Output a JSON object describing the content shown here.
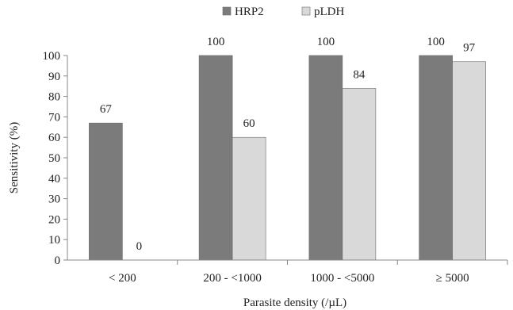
{
  "chart_data": {
    "type": "bar",
    "title": "",
    "xlabel": "Parasite density (/µL)",
    "ylabel": "Sensitivity (%)",
    "categories": [
      "< 200",
      "200 - <1000",
      "1000 - <5000",
      "≥ 5000"
    ],
    "series": [
      {
        "name": "HRP2",
        "values": [
          67,
          100,
          100,
          100
        ],
        "labels": [
          "67",
          "100",
          "100",
          "100"
        ],
        "color": "#7b7b7b"
      },
      {
        "name": "pLDH",
        "values": [
          0,
          60,
          84,
          97
        ],
        "labels": [
          "0",
          "60",
          "84",
          "97"
        ],
        "color": "#d9d9d9"
      }
    ],
    "ylim": [
      0,
      100
    ],
    "yticks": [
      0,
      10,
      20,
      30,
      40,
      50,
      60,
      70,
      80,
      90,
      100
    ],
    "ytick_labels": [
      "0",
      "10",
      "20",
      "30",
      "40",
      "50",
      "60",
      "70",
      "80",
      "90",
      "100"
    ],
    "grid": false,
    "legend": {
      "position": "top-center",
      "entries": [
        "HRP2",
        "pLDH"
      ]
    }
  }
}
